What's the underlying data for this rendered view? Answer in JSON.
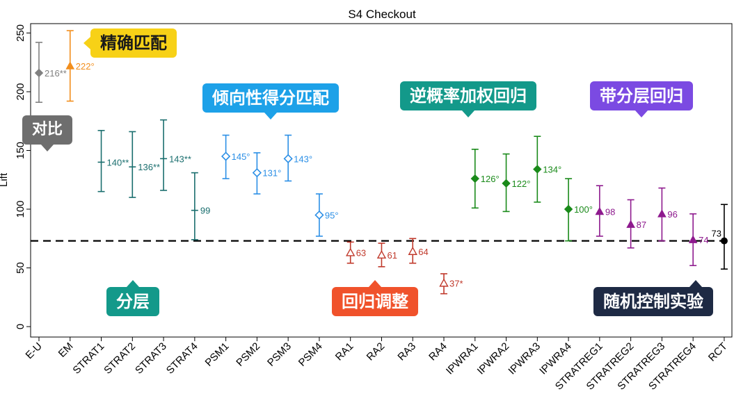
{
  "chart_data": {
    "type": "scatter",
    "title": "S4 Checkout",
    "ylabel": "Lift",
    "xlabel": "",
    "ylim": [
      0,
      260
    ],
    "yticks": [
      0,
      50,
      100,
      150,
      200,
      250
    ],
    "reference_line": 73,
    "grid": false,
    "points": [
      {
        "category": "E-U",
        "value": 216,
        "lower": 191,
        "upper": 242,
        "label": "216**",
        "marker": "diamond-filled",
        "color": "#808080"
      },
      {
        "category": "EM",
        "value": 222,
        "lower": 192,
        "upper": 252,
        "label": "222°",
        "marker": "triangle-filled",
        "color": "#f28e1c"
      },
      {
        "category": "STRAT1",
        "value": 140,
        "lower": 115,
        "upper": 167,
        "label": "140**",
        "marker": "plus",
        "color": "#1a6e6e"
      },
      {
        "category": "STRAT2",
        "value": 136,
        "lower": 110,
        "upper": 166,
        "label": "136**",
        "marker": "plus",
        "color": "#1a6e6e"
      },
      {
        "category": "STRAT3",
        "value": 143,
        "lower": 116,
        "upper": 176,
        "label": "143**",
        "marker": "plus",
        "color": "#1a6e6e"
      },
      {
        "category": "STRAT4",
        "value": 99,
        "lower": 74,
        "upper": 131,
        "label": "99",
        "marker": "plus",
        "color": "#1a6e6e"
      },
      {
        "category": "PSM1",
        "value": 145,
        "lower": 126,
        "upper": 163,
        "label": "145°",
        "marker": "diamond-open",
        "color": "#2b8fe6"
      },
      {
        "category": "PSM2",
        "value": 131,
        "lower": 113,
        "upper": 148,
        "label": "131°",
        "marker": "diamond-open",
        "color": "#2b8fe6"
      },
      {
        "category": "PSM3",
        "value": 143,
        "lower": 124,
        "upper": 163,
        "label": "143°",
        "marker": "diamond-open",
        "color": "#2b8fe6"
      },
      {
        "category": "PSM4",
        "value": 95,
        "lower": 77,
        "upper": 113,
        "label": "95°",
        "marker": "diamond-open",
        "color": "#2b8fe6"
      },
      {
        "category": "RA1",
        "value": 63,
        "lower": 54,
        "upper": 72,
        "label": "63",
        "marker": "triangle-open",
        "color": "#c0392b"
      },
      {
        "category": "RA2",
        "value": 61,
        "lower": 51,
        "upper": 71,
        "label": "61",
        "marker": "triangle-open",
        "color": "#c0392b"
      },
      {
        "category": "RA3",
        "value": 64,
        "lower": 54,
        "upper": 75,
        "label": "64",
        "marker": "triangle-open",
        "color": "#c0392b"
      },
      {
        "category": "RA4",
        "value": 37,
        "lower": 28,
        "upper": 45,
        "label": "37*",
        "marker": "triangle-open",
        "color": "#c0392b"
      },
      {
        "category": "IPWRA1",
        "value": 126,
        "lower": 101,
        "upper": 151,
        "label": "126°",
        "marker": "diamond-filled",
        "color": "#1a8a1a"
      },
      {
        "category": "IPWRA2",
        "value": 122,
        "lower": 98,
        "upper": 147,
        "label": "122°",
        "marker": "diamond-filled",
        "color": "#1a8a1a"
      },
      {
        "category": "IPWRA3",
        "value": 134,
        "lower": 106,
        "upper": 162,
        "label": "134°",
        "marker": "diamond-filled",
        "color": "#1a8a1a"
      },
      {
        "category": "IPWRA4",
        "value": 100,
        "lower": 73,
        "upper": 126,
        "label": "100°",
        "marker": "diamond-filled",
        "color": "#1a8a1a"
      },
      {
        "category": "STRATREG1",
        "value": 98,
        "lower": 77,
        "upper": 120,
        "label": "98",
        "marker": "triangle-filled",
        "color": "#8e1a8e"
      },
      {
        "category": "STRATREG2",
        "value": 87,
        "lower": 67,
        "upper": 108,
        "label": "87",
        "marker": "triangle-filled",
        "color": "#8e1a8e"
      },
      {
        "category": "STRATREG3",
        "value": 96,
        "lower": 73,
        "upper": 118,
        "label": "96",
        "marker": "triangle-filled",
        "color": "#8e1a8e"
      },
      {
        "category": "STRATREG4",
        "value": 74,
        "lower": 52,
        "upper": 96,
        "label": "74",
        "marker": "triangle-filled",
        "color": "#8e1a8e"
      },
      {
        "category": "RCT",
        "value": 73,
        "lower": 49,
        "upper": 104,
        "label": "73",
        "marker": "circle-filled",
        "color": "#000000"
      }
    ]
  },
  "callouts": [
    {
      "id": "compare",
      "text": "对比",
      "color": "#6e6e6e"
    },
    {
      "id": "exact-match",
      "text": "精确匹配",
      "color": "#f7d117"
    },
    {
      "id": "psm",
      "text": "倾向性得分匹配",
      "color": "#1da1e8"
    },
    {
      "id": "ipwra",
      "text": "逆概率加权回归",
      "color": "#13998a"
    },
    {
      "id": "stratreg",
      "text": "带分层回归",
      "color": "#7b4ae2"
    },
    {
      "id": "strat",
      "text": "分层",
      "color": "#13998a"
    },
    {
      "id": "ra",
      "text": "回归调整",
      "color": "#f0522b"
    },
    {
      "id": "rct",
      "text": "随机控制实验",
      "color": "#1e2a44"
    }
  ]
}
